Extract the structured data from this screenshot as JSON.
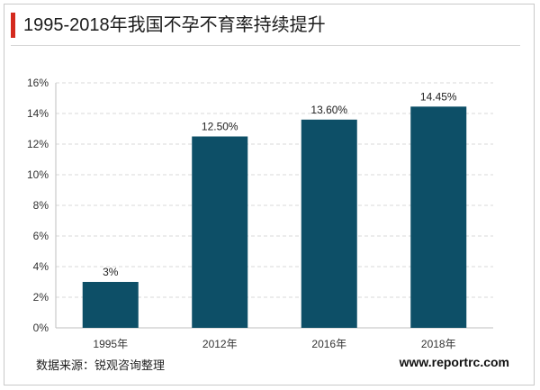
{
  "header": {
    "title": "1995-2018年我国不孕不育率持续提升",
    "accent_color": "#d42a1e"
  },
  "footer": {
    "source": "数据来源：锐观咨询整理",
    "website": "www.reportrc.com"
  },
  "chart_data": {
    "type": "bar",
    "title": "1995-2018年我国不孕不育率持续提升",
    "categories": [
      "1995年",
      "2012年",
      "2016年",
      "2018年"
    ],
    "values": [
      3,
      12.5,
      13.6,
      14.45
    ],
    "data_labels": [
      "3%",
      "12.50%",
      "13.60%",
      "14.45%"
    ],
    "y_ticks": [
      "0%",
      "2%",
      "4%",
      "6%",
      "8%",
      "10%",
      "12%",
      "14%",
      "16%"
    ],
    "ylim": [
      0,
      16
    ],
    "y_step": 2,
    "xlabel": "",
    "ylabel": "",
    "grid": true,
    "bar_color": "#0d4f67",
    "legend": "none"
  }
}
